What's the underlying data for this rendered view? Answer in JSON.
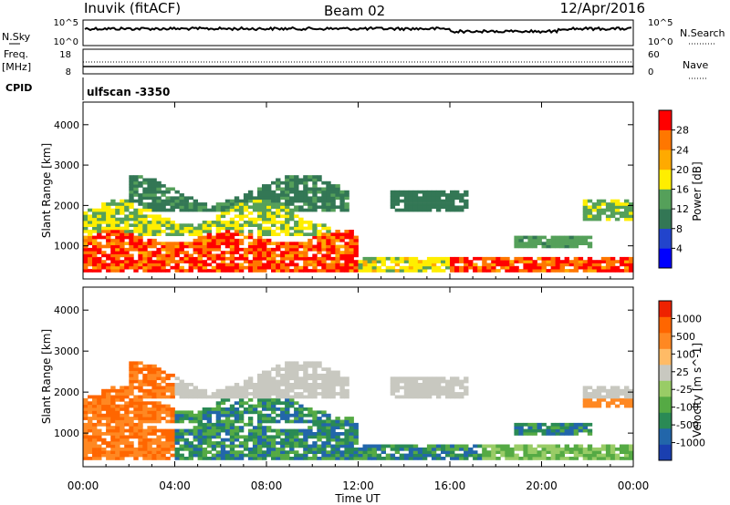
{
  "header": {
    "station": "Inuvik (fitACF)",
    "beam": "Beam 02",
    "date": "12/Apr/2016"
  },
  "top_panels": {
    "nsky_label": "N.Sky",
    "nsky_ticks": [
      "10^5",
      "10^0"
    ],
    "nsearch_label": "N.Search",
    "nsearch_ticks": [
      "10^5",
      "10^0"
    ],
    "freq_label_1": "Freq.",
    "freq_label_2": "[MHz]",
    "freq_ticks": [
      "18",
      "8"
    ],
    "nave_label": "Nave",
    "nave_ticks": [
      "60",
      "0"
    ],
    "cpid_label": "CPID",
    "cpid_value": "ulfscan -3350"
  },
  "chart_data": [
    {
      "type": "heatmap",
      "name": "power",
      "ylabel": "Slant Range [km]",
      "yticks": [
        "4000",
        "3000",
        "2000",
        "1000"
      ],
      "ylim": [
        180,
        4560
      ],
      "colorbar_label": "Power [dB]",
      "colorbar_ticks": [
        "28",
        "24",
        "20",
        "16",
        "12",
        "8",
        "4"
      ],
      "colorbar_colors": [
        "#0000ff",
        "#2244cc",
        "#337755",
        "#55a05a",
        "#ffee00",
        "#ffaa00",
        "#ff7700",
        "#ff0000"
      ],
      "colorbar_range": [
        0,
        30
      ]
    },
    {
      "type": "heatmap",
      "name": "velocity",
      "ylabel": "Slant Range [km]",
      "yticks": [
        "4000",
        "3000",
        "2000",
        "1000"
      ],
      "ylim": [
        180,
        4560
      ],
      "colorbar_label": "Velocity [m s^-1]",
      "colorbar_ticks": [
        "1000",
        "500",
        "100",
        "25",
        "-25",
        "-100",
        "-500",
        "-1000"
      ],
      "colorbar_colors": [
        "#1a3fb0",
        "#2266aa",
        "#2a8a55",
        "#55aa44",
        "#99cc66",
        "#c8c8c0",
        "#ffbb66",
        "#ff8822",
        "#ff6600",
        "#ee2200"
      ]
    }
  ],
  "x_axis": {
    "ticks": [
      "00:00",
      "04:00",
      "08:00",
      "12:00",
      "16:00",
      "20:00",
      "00:00"
    ],
    "label": "Time UT"
  }
}
